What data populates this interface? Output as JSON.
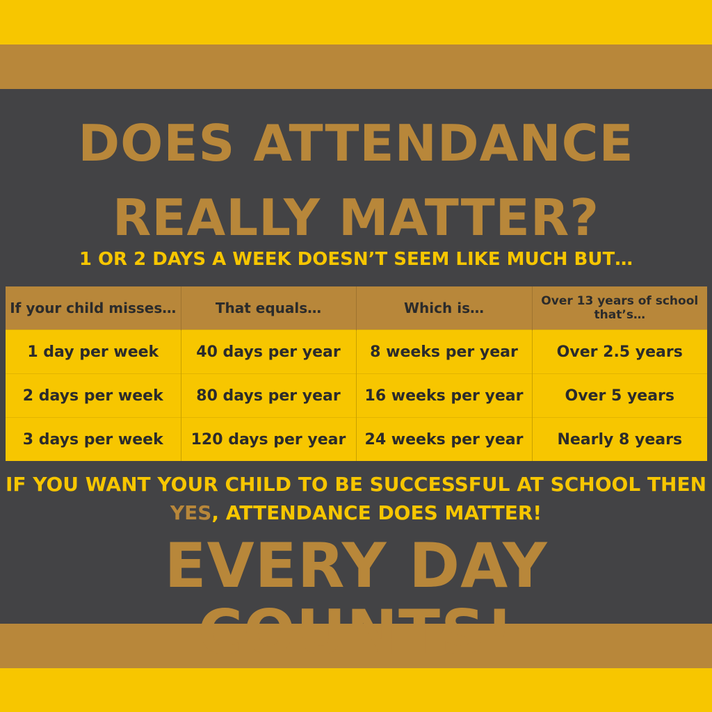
{
  "colors": {
    "yellow": "#f7c600",
    "gold": "#b8873a",
    "charcoal": "#434345",
    "text_dark": "#2b2b2b"
  },
  "headline": {
    "line1": "DOES ATTENDANCE",
    "line2": "REALLY MATTER?"
  },
  "subtitle": "1 OR 2 DAYS A WEEK DOESN’T SEEM LIKE MUCH BUT…",
  "table": {
    "headers": [
      "If your child misses…",
      "That equals…",
      "Which is…",
      "Over 13 years of school that’s…"
    ],
    "rows": [
      [
        "1 day per week",
        "40 days per year",
        "8 weeks per year",
        "Over 2.5 years"
      ],
      [
        "2 days per week",
        "80 days per year",
        "16 weeks per year",
        "Over 5 years"
      ],
      [
        "3 days per week",
        "120 days per year",
        "24 weeks per year",
        "Nearly 8 years"
      ]
    ]
  },
  "closing": {
    "line1": "IF YOU WANT YOUR CHILD TO BE SUCCESSFUL AT SCHOOL THEN",
    "yes": "YES",
    "line2_rest": ", ATTENDANCE DOES MATTER!"
  },
  "motto": "EVERY DAY COUNTS!"
}
